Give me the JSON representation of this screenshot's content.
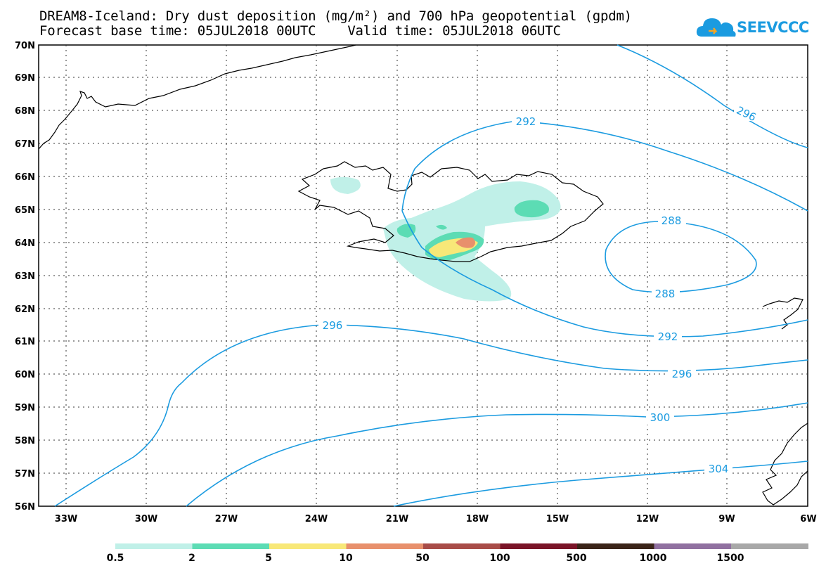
{
  "header": {
    "line1": "DREAM8-Iceland: Dry dust deposition (mg/m²) and 700 hPa geopotential (gpdm)",
    "line2": "Forecast base time: 05JUL2018 00UTC    Valid time: 05JUL2018 06UTC"
  },
  "logo": {
    "text": "SEEVCCC",
    "icon": "cloud-icon"
  },
  "map": {
    "lon_labels": [
      "33W",
      "30W",
      "27W",
      "24W",
      "21W",
      "18W",
      "15W",
      "12W",
      "9W",
      "6W"
    ],
    "lat_labels": [
      "70N",
      "69N",
      "68N",
      "67N",
      "66N",
      "65N",
      "64N",
      "63N",
      "62N",
      "61N",
      "60N",
      "59N",
      "58N",
      "57N",
      "56N"
    ],
    "contour_labels": [
      "296",
      "292",
      "288",
      "288",
      "296",
      "292",
      "296",
      "300",
      "304"
    ],
    "contour_color": "#1b9be0"
  },
  "colorbar": {
    "labels": [
      "0.5",
      "2",
      "5",
      "10",
      "50",
      "100",
      "500",
      "1000",
      "1500"
    ],
    "colors": [
      "#c0f0e8",
      "#5cdcb4",
      "#f8e878",
      "#e8906c",
      "#a84c48",
      "#7a1428",
      "#3a2418",
      "#9070a0",
      "#a8a8a8"
    ]
  }
}
